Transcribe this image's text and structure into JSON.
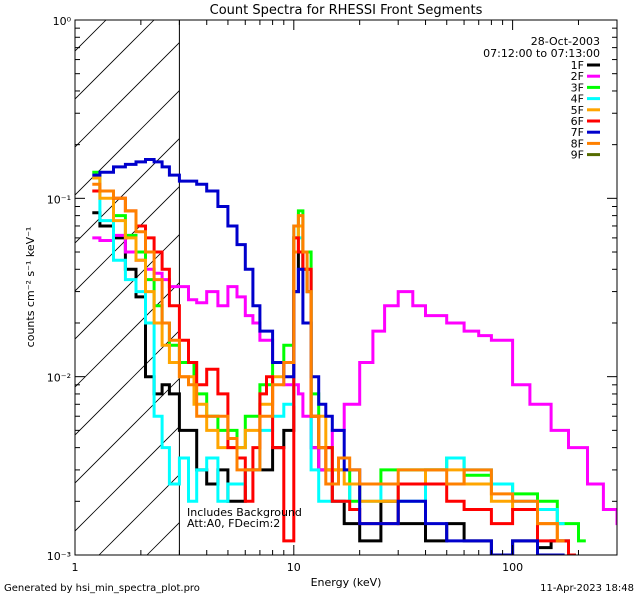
{
  "chart_data": {
    "type": "line",
    "title": "Count Spectra for RHESSI Front Segments",
    "xlabel": "Energy (keV)",
    "ylabel": "counts cm⁻² s⁻¹ keV⁻¹",
    "xscale": "log",
    "yscale": "log",
    "xlim": [
      1,
      300
    ],
    "ylim": [
      0.001,
      1
    ],
    "x_tick_labels": [
      "1",
      "10",
      "100"
    ],
    "y_tick_labels": [
      "10⁻³",
      "10⁻²",
      "10⁻¹",
      "10⁰"
    ],
    "date": "28-Oct-2003",
    "time_range": "07:12:00 to 07:13:00",
    "shaded_region": {
      "xmin": 1,
      "xmax": 3,
      "style": "hatched"
    },
    "annotations": [
      "Includes Background",
      "Att:A0, FDecim:2"
    ],
    "legend_position": "top-right",
    "series": [
      {
        "name": "1F",
        "color": "#000000",
        "x": [
          1.2,
          1.3,
          1.5,
          1.7,
          1.9,
          2.1,
          2.3,
          2.5,
          2.7,
          3.0,
          3.3,
          3.6,
          4.0,
          4.5,
          5.0,
          6.0,
          7.0,
          8.0,
          9.0,
          10.0,
          10.5,
          11.0,
          11.5,
          12.0,
          13.0,
          15.0,
          17.0,
          20.0,
          25.0,
          30.0,
          40.0,
          50.0,
          60.0,
          80.0,
          100.0,
          130.0,
          150.0,
          180.0
        ],
        "y": [
          0.083,
          0.07,
          0.06,
          0.04,
          0.028,
          0.01,
          0.008,
          0.009,
          0.008,
          0.005,
          0.005,
          0.003,
          0.0025,
          0.003,
          0.002,
          0.003,
          0.003,
          0.004,
          0.005,
          0.03,
          0.05,
          0.04,
          0.03,
          0.004,
          0.003,
          0.002,
          0.0015,
          0.0012,
          0.002,
          0.0015,
          0.0012,
          0.0015,
          0.0012,
          0.001,
          0.0012,
          0.0011,
          0.0012,
          0.001
        ]
      },
      {
        "name": "2F",
        "color": "#ff00ff",
        "x": [
          1.2,
          1.3,
          1.5,
          1.7,
          1.9,
          2.1,
          2.3,
          2.5,
          2.7,
          3.0,
          3.3,
          3.6,
          4.0,
          4.5,
          5.0,
          5.5,
          6.0,
          6.5,
          7.0,
          8.0,
          9.0,
          10.0,
          10.5,
          11.0,
          12.0,
          13.0,
          14.0,
          15.0,
          17.0,
          20.0,
          23.0,
          26.0,
          30.0,
          35.0,
          40.0,
          50.0,
          60.0,
          70.0,
          80.0,
          100.0,
          120.0,
          150.0,
          180.0,
          220.0,
          260.0,
          300.0
        ],
        "y": [
          0.06,
          0.058,
          0.062,
          0.05,
          0.045,
          0.04,
          0.038,
          0.035,
          0.032,
          0.032,
          0.027,
          0.026,
          0.03,
          0.025,
          0.032,
          0.028,
          0.022,
          0.02,
          0.016,
          0.012,
          0.009,
          0.009,
          0.008,
          0.006,
          0.004,
          0.003,
          0.004,
          0.005,
          0.007,
          0.012,
          0.018,
          0.025,
          0.03,
          0.025,
          0.022,
          0.02,
          0.018,
          0.017,
          0.016,
          0.009,
          0.007,
          0.005,
          0.004,
          0.0025,
          0.0018,
          0.0015
        ]
      },
      {
        "name": "3F",
        "color": "#00ff00",
        "x": [
          1.2,
          1.3,
          1.5,
          1.7,
          1.9,
          2.1,
          2.3,
          2.5,
          2.7,
          3.0,
          3.5,
          4.0,
          4.5,
          5.0,
          5.5,
          6.0,
          7.0,
          8.0,
          9.0,
          10.0,
          10.5,
          11.0,
          12.0,
          13.0,
          15.0,
          18.0,
          20.0,
          25.0,
          30.0,
          40.0,
          50.0,
          60.0,
          80.0,
          100.0,
          130.0,
          160.0,
          200.0
        ],
        "y": [
          0.14,
          0.11,
          0.08,
          0.062,
          0.05,
          0.035,
          0.025,
          0.02,
          0.015,
          0.012,
          0.008,
          0.006,
          0.005,
          0.005,
          0.004,
          0.006,
          0.009,
          0.012,
          0.015,
          0.06,
          0.085,
          0.05,
          0.008,
          0.004,
          0.003,
          0.002,
          0.0025,
          0.003,
          0.003,
          0.003,
          0.0035,
          0.0028,
          0.0025,
          0.0022,
          0.002,
          0.0015,
          0.0012
        ]
      },
      {
        "name": "4F",
        "color": "#00ffff",
        "x": [
          1.2,
          1.3,
          1.5,
          1.7,
          1.9,
          2.1,
          2.3,
          2.5,
          2.7,
          3.0,
          3.3,
          3.6,
          4.0,
          4.5,
          5.0,
          6.0,
          7.0,
          8.0,
          9.0,
          10.0,
          10.5,
          11.0,
          12.0,
          13.0,
          15.0,
          18.0,
          20.0,
          25.0,
          30.0,
          40.0,
          50.0,
          60.0,
          80.0,
          100.0,
          130.0,
          160.0
        ],
        "y": [
          0.13,
          0.075,
          0.045,
          0.035,
          0.03,
          0.02,
          0.006,
          0.004,
          0.0025,
          0.0035,
          0.002,
          0.003,
          0.0035,
          0.002,
          0.0025,
          0.003,
          0.005,
          0.006,
          0.007,
          0.07,
          0.06,
          0.04,
          0.003,
          0.002,
          0.002,
          0.0025,
          0.002,
          0.0025,
          0.002,
          0.003,
          0.0035,
          0.003,
          0.0025,
          0.002,
          0.0018,
          0.0015
        ]
      },
      {
        "name": "5F",
        "color": "#ffa500",
        "x": [
          1.2,
          1.3,
          1.5,
          1.7,
          1.9,
          2.1,
          2.3,
          2.5,
          2.7,
          3.0,
          3.5,
          4.0,
          4.5,
          5.0,
          6.0,
          7.0,
          8.0,
          9.0,
          10.0,
          10.5,
          11.0,
          12.0,
          14.0,
          17.0,
          20.0,
          25.0,
          30.0,
          40.0,
          50.0,
          60.0,
          80.0,
          100.0,
          130.0,
          160.0
        ],
        "y": [
          0.13,
          0.1,
          0.075,
          0.06,
          0.045,
          0.03,
          0.02,
          0.015,
          0.012,
          0.01,
          0.007,
          0.005,
          0.004,
          0.004,
          0.005,
          0.007,
          0.01,
          0.012,
          0.05,
          0.07,
          0.04,
          0.006,
          0.003,
          0.0025,
          0.002,
          0.002,
          0.0025,
          0.003,
          0.003,
          0.0025,
          0.002,
          0.0018,
          0.0015,
          0.0012
        ]
      },
      {
        "name": "6F",
        "color": "#ff0000",
        "x": [
          1.2,
          1.3,
          1.5,
          1.7,
          1.9,
          2.1,
          2.3,
          2.5,
          2.7,
          3.0,
          3.3,
          3.6,
          4.0,
          4.5,
          5.0,
          5.5,
          6.0,
          6.5,
          7.0,
          7.5,
          8.0,
          9.0,
          10.0,
          10.5,
          11.0,
          12.0,
          13.0,
          15.0,
          18.0,
          20.0,
          25.0,
          30.0,
          40.0,
          50.0,
          60.0,
          80.0,
          100.0,
          130.0,
          160.0,
          180.0
        ],
        "y": [
          0.11,
          0.11,
          0.1,
          0.085,
          0.07,
          0.06,
          0.05,
          0.04,
          0.025,
          0.016,
          0.012,
          0.009,
          0.011,
          0.008,
          0.004,
          0.0035,
          0.002,
          0.004,
          0.008,
          0.01,
          0.004,
          0.0012,
          0.06,
          0.05,
          0.04,
          0.006,
          0.004,
          0.002,
          0.0018,
          0.0015,
          0.0015,
          0.0025,
          0.0025,
          0.002,
          0.0018,
          0.0015,
          0.0018,
          0.0012,
          0.0012,
          0.001
        ]
      },
      {
        "name": "7F",
        "color": "#0000cc",
        "x": [
          1.2,
          1.3,
          1.5,
          1.7,
          1.9,
          2.1,
          2.3,
          2.5,
          2.7,
          3.0,
          3.3,
          3.6,
          4.0,
          4.5,
          5.0,
          5.5,
          6.0,
          6.5,
          7.0,
          8.0,
          9.0,
          10.0,
          10.5,
          11.0,
          12.0,
          13.0,
          14.0,
          15.0,
          17.0,
          20.0,
          25.0,
          30.0,
          40.0,
          50.0,
          60.0,
          80.0,
          100.0,
          130.0,
          160.0
        ],
        "y": [
          0.135,
          0.14,
          0.15,
          0.155,
          0.16,
          0.165,
          0.16,
          0.15,
          0.135,
          0.125,
          0.125,
          0.12,
          0.11,
          0.09,
          0.07,
          0.055,
          0.04,
          0.025,
          0.018,
          0.012,
          0.01,
          0.03,
          0.04,
          0.02,
          0.01,
          0.007,
          0.006,
          0.005,
          0.003,
          0.0015,
          0.0015,
          0.002,
          0.0015,
          0.0012,
          0.0012,
          0.001,
          0.0012,
          0.001,
          0.001
        ]
      },
      {
        "name": "8F",
        "color": "#ff8000",
        "x": [
          1.2,
          1.3,
          1.5,
          1.7,
          1.9,
          2.1,
          2.3,
          2.5,
          2.7,
          3.0,
          3.3,
          3.6,
          4.0,
          4.5,
          5.0,
          5.5,
          6.0,
          7.0,
          8.0,
          9.0,
          10.0,
          10.5,
          11.0,
          11.5,
          12.0,
          13.0,
          14.0,
          16.0,
          18.0,
          20.0,
          25.0,
          30.0,
          40.0,
          50.0,
          60.0,
          80.0,
          100.0,
          130.0,
          160.0
        ],
        "y": [
          0.12,
          0.11,
          0.1,
          0.085,
          0.065,
          0.05,
          0.035,
          0.02,
          0.016,
          0.01,
          0.009,
          0.006,
          0.006,
          0.006,
          0.0045,
          0.003,
          0.003,
          0.006,
          0.009,
          0.012,
          0.07,
          0.08,
          0.05,
          0.03,
          0.006,
          0.004,
          0.0025,
          0.0035,
          0.003,
          0.0025,
          0.0025,
          0.003,
          0.003,
          0.0025,
          0.003,
          0.0022,
          0.002,
          0.0015,
          0.0012
        ]
      },
      {
        "name": "9F",
        "color": "#556b00",
        "x": [],
        "y": []
      }
    ]
  },
  "footer": {
    "left": "Generated by hsi_min_spectra_plot.pro",
    "right": "11-Apr-2023 18:48"
  }
}
